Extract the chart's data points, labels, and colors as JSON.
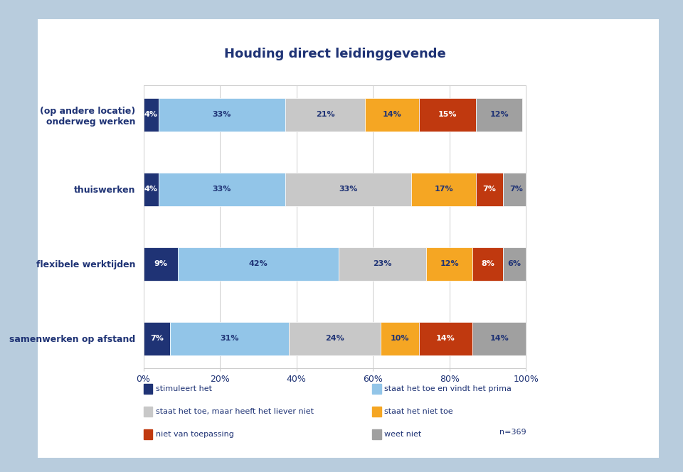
{
  "title": "Houding direct leidinggevende",
  "categories": [
    "(op andere locatie)\nonderweg werken",
    "thuiswerken",
    "flexibele werktijden",
    "samenwerken op afstand"
  ],
  "series": [
    {
      "label": "stimuleert het",
      "color": "#1F3375",
      "values": [
        4,
        4,
        9,
        7
      ]
    },
    {
      "label": "staat het toe en vindt het prima",
      "color": "#92C5E8",
      "values": [
        33,
        33,
        42,
        31
      ]
    },
    {
      "label": "staat het toe, maar heeft het liever niet",
      "color": "#C8C8C8",
      "values": [
        21,
        33,
        23,
        24
      ]
    },
    {
      "label": "staat het niet toe",
      "color": "#F5A623",
      "values": [
        14,
        17,
        12,
        10
      ]
    },
    {
      "label": "niet van toepassing",
      "color": "#C0390F",
      "values": [
        15,
        7,
        8,
        14
      ]
    },
    {
      "label": "weet niet",
      "color": "#A0A0A0",
      "values": [
        12,
        7,
        6,
        14
      ]
    }
  ],
  "xlabel": "",
  "ylabel": "",
  "xlim": [
    0,
    100
  ],
  "xticks": [
    0,
    20,
    40,
    60,
    80,
    100
  ],
  "background_color": "#FFFFFF",
  "chart_area_bg": "#FFFFFF",
  "bar_height": 0.45,
  "n_label": "n=369",
  "legend_items_col1": [
    "stimuleert het",
    "staat het toe, maar heeft het liever niet",
    "niet van toepassing"
  ],
  "legend_items_col2": [
    "staat het toe en vindt het prima",
    "staat het niet toe",
    "weet niet"
  ],
  "title_color": "#1F3375",
  "label_color": "#1F3375",
  "text_color": "#1F3375",
  "grid_color": "#CCCCCC",
  "outer_bg": "#B8CCDD"
}
